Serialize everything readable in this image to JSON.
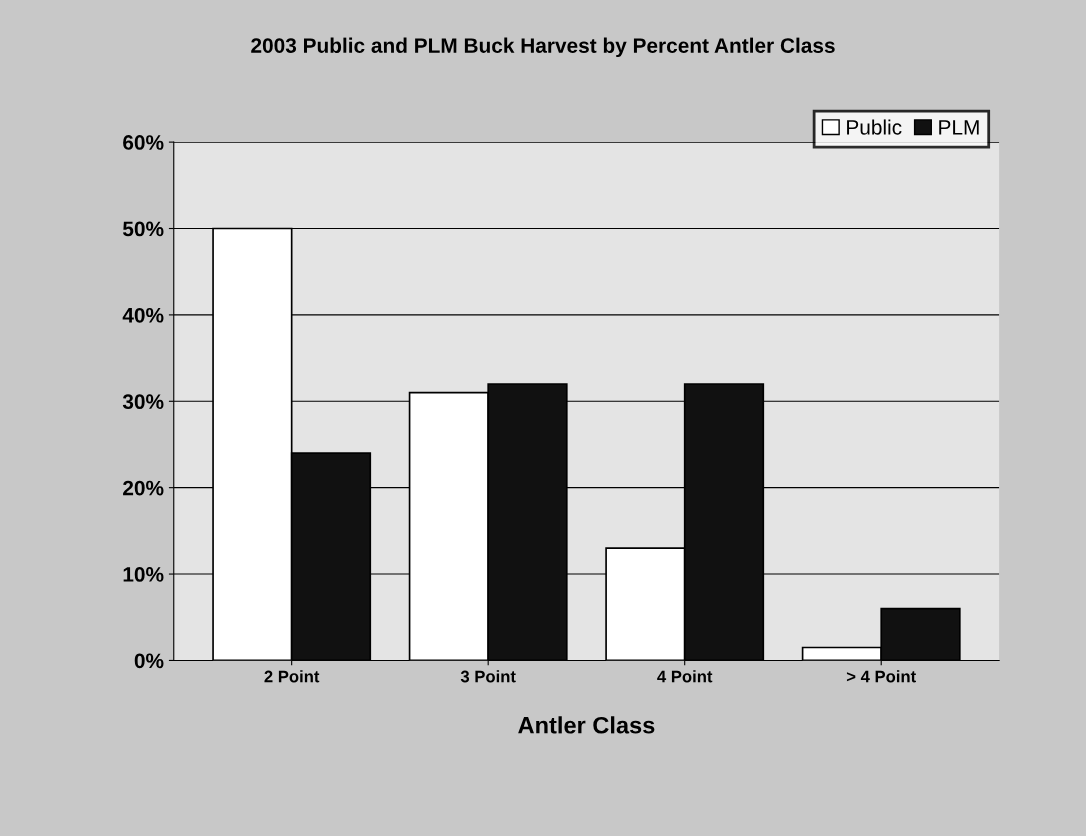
{
  "chart_data": {
    "type": "bar",
    "title": "2003 Public and PLM Buck Harvest by Percent Antler Class",
    "xlabel": "Antler Class",
    "categories": [
      "2 Point",
      "3 Point",
      "4 Point",
      "> 4 Point"
    ],
    "series": [
      {
        "name": "Public",
        "color": "#ffffff",
        "values": [
          50,
          31,
          13,
          1.5
        ]
      },
      {
        "name": "PLM",
        "color": "#111111",
        "values": [
          24,
          32,
          32,
          6
        ]
      }
    ],
    "ylim": [
      0,
      60
    ],
    "yticks": [
      {
        "value": 0,
        "label": "0%"
      },
      {
        "value": 10,
        "label": "10%"
      },
      {
        "value": 20,
        "label": "20%"
      },
      {
        "value": 30,
        "label": "30%"
      },
      {
        "value": 40,
        "label": "40%"
      },
      {
        "value": 50,
        "label": "50%"
      },
      {
        "value": 60,
        "label": "60%"
      }
    ],
    "grid": "y",
    "legend": "top right"
  }
}
